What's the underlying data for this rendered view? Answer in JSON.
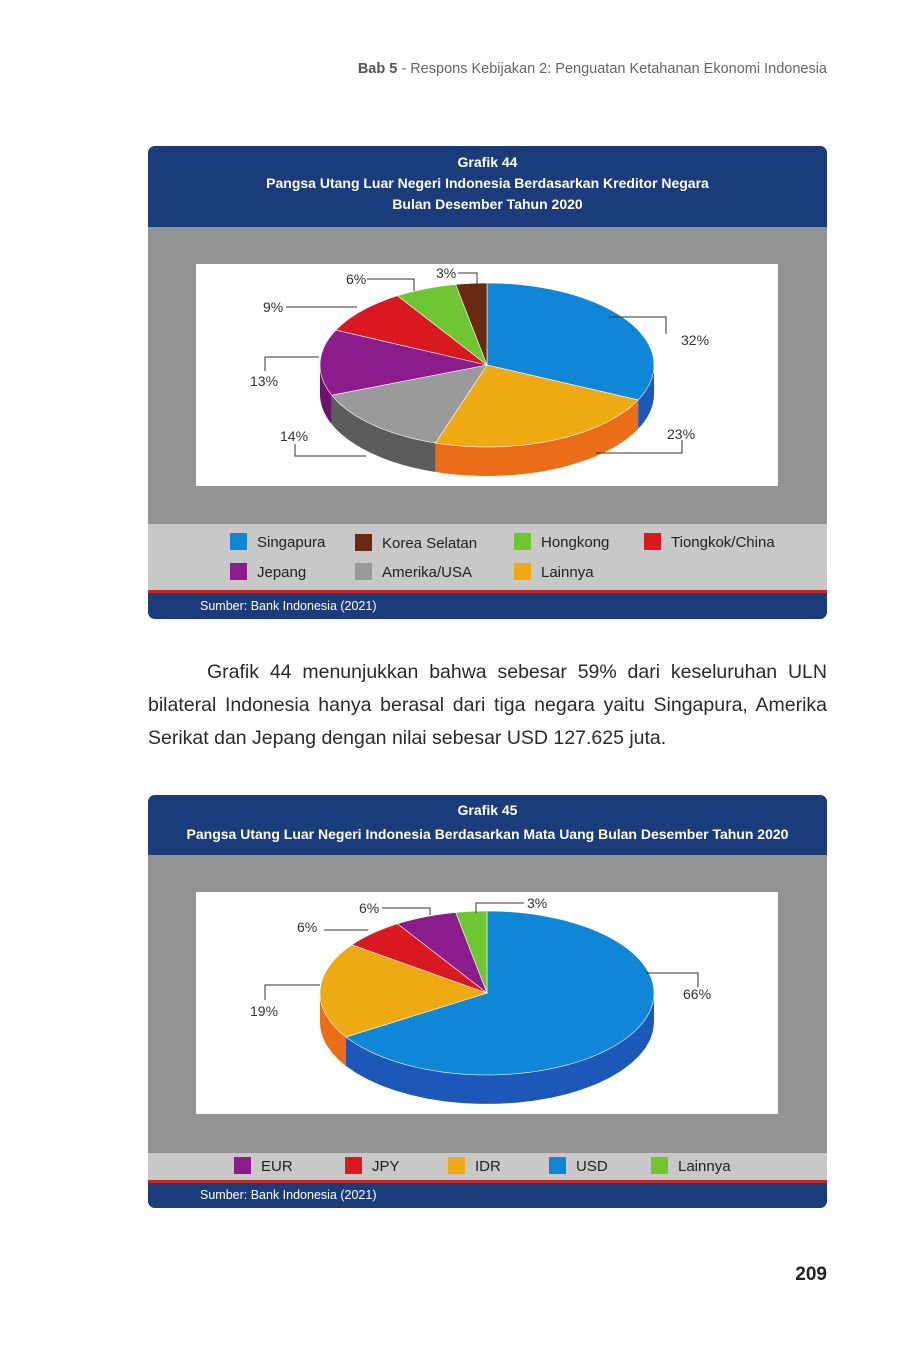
{
  "running_header": {
    "chapter": "Bab 5",
    "title": " - Respons Kebijakan 2: Penguatan Ketahanan Ekonomi Indonesia"
  },
  "chart44": {
    "label": "Grafik 44",
    "title_line1": "Pangsa Utang Luar Negeri Indonesia Berdasarkan Kreditor Negara",
    "title_line2": "Bulan Desember Tahun 2020",
    "source": "Sumber: Bank Indonesia (2021)"
  },
  "chart45": {
    "label": "Grafik 45",
    "title_line1": "Pangsa Utang Luar Negeri Indonesia Berdasarkan Mata Uang Bulan Desember Tahun 2020",
    "source": "Sumber: Bank Indonesia (2021)"
  },
  "chart_data": [
    {
      "type": "pie",
      "title": "Pangsa Utang Luar Negeri Indonesia Berdasarkan Kreditor Negara Bulan Desember Tahun 2020",
      "slices": [
        {
          "name": "Singapura",
          "value": 32,
          "label": "32%",
          "color": "#0f87d6",
          "side": "#1d57b8"
        },
        {
          "name": "Lainnya",
          "value": 23,
          "label": "23%",
          "color": "#eeaa12",
          "side": "#eb6d17"
        },
        {
          "name": "Amerika/USA",
          "value": 14,
          "label": "14%",
          "color": "#9a9a9a",
          "side": "#5c5c5c"
        },
        {
          "name": "Jepang",
          "value": 13,
          "label": "13%",
          "color": "#8c1b8c",
          "side": "#6a136c"
        },
        {
          "name": "Tiongkok/China",
          "value": 9,
          "label": "9%",
          "color": "#d9191f",
          "side": "#a01418"
        },
        {
          "name": "Hongkong",
          "value": 6,
          "label": "6%",
          "color": "#6ec632",
          "side": "#4d9a22"
        },
        {
          "name": "Korea Selatan",
          "value": 3,
          "label": "3%",
          "color": "#6a2a12",
          "side": "#4a1c0b"
        }
      ],
      "legend": [
        {
          "name": "Singapura",
          "color": "#0f87d6"
        },
        {
          "name": "Korea Selatan",
          "color": "#6a2a12"
        },
        {
          "name": "Hongkong",
          "color": "#6ec632"
        },
        {
          "name": "Tiongkok/China",
          "color": "#d9191f"
        },
        {
          "name": "Jepang",
          "color": "#8c1b8c"
        },
        {
          "name": "Amerika/USA",
          "color": "#9a9a9a"
        },
        {
          "name": "Lainnya",
          "color": "#eeaa12"
        }
      ]
    },
    {
      "type": "pie",
      "title": "Pangsa Utang Luar Negeri Indonesia Berdasarkan Mata Uang Bulan Desember Tahun 2020",
      "slices": [
        {
          "name": "USD",
          "value": 66,
          "label": "66%",
          "color": "#0f87d6",
          "side": "#1d57b8"
        },
        {
          "name": "IDR",
          "value": 19,
          "label": "19%",
          "color": "#eeaa12",
          "side": "#eb6d17"
        },
        {
          "name": "JPY",
          "value": 6,
          "label": "6%",
          "color": "#d9191f",
          "side": "#a01418"
        },
        {
          "name": "EUR",
          "value": 6,
          "label": "6%",
          "color": "#8c1b8c",
          "side": "#6a136c"
        },
        {
          "name": "Lainnya",
          "value": 3,
          "label": "3%",
          "color": "#6ec632",
          "side": "#4d9a22"
        }
      ],
      "legend": [
        {
          "name": "EUR",
          "color": "#8c1b8c"
        },
        {
          "name": "JPY",
          "color": "#d9191f"
        },
        {
          "name": "IDR",
          "color": "#eeaa12"
        },
        {
          "name": "USD",
          "color": "#0f87d6"
        },
        {
          "name": "Lainnya",
          "color": "#6ec632"
        }
      ]
    }
  ],
  "body_paragraph": "Grafik 44 menunjukkan bahwa sebesar 59% dari keseluruhan ULN bilateral Indonesia hanya berasal dari tiga negara yaitu Singapura, Amerika Serikat dan Jepang dengan nilai sebesar USD 127.625 juta.",
  "page_number": "209"
}
